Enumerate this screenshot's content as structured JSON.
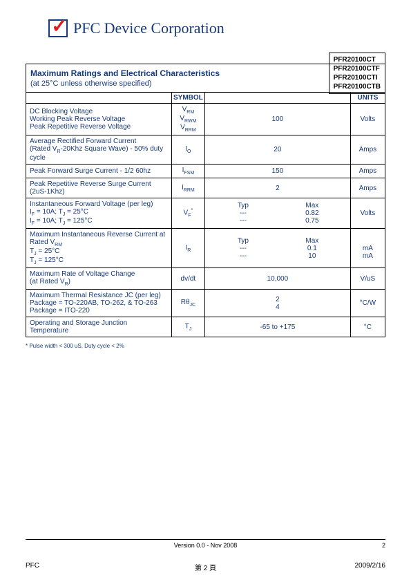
{
  "colors": {
    "brand_blue": "#173a7a",
    "check_red": "#e21b1b",
    "text": "#000000",
    "background": "#ffffff"
  },
  "header": {
    "company_name": "PFC Device Corporation"
  },
  "parts_box": {
    "lines": [
      "PFR20100CT",
      "PFR20100CTF",
      "PFR20100CTI",
      "PFR20100CTB"
    ]
  },
  "table": {
    "title": "Maximum Ratings and Electrical Characteristics",
    "condition": "(at 25°C unless otherwise specified)",
    "headers": {
      "symbol": "SYMBOL",
      "units": "UNITS"
    },
    "rows": [
      {
        "param_lines": [
          "DC Blocking Voltage",
          "Working Peak Reverse Voltage",
          "Peak Repetitive Reverse Voltage"
        ],
        "symbol_html": "V<sub class='sub'>RM</sub><br>V<sub class='sub'>RWM</sub><br>V<sub class='sub'>RRM</sub>",
        "value": "100",
        "units": "Volts"
      },
      {
        "param_lines": [
          "Average Rectified Forward Current",
          "(Rated V<sub class='sub'>R</sub>-20Khz Square Wave) - 50% duty",
          "cycle"
        ],
        "symbol_html": "I<sub class='sub'>O</sub>",
        "value": "20",
        "units": "Amps"
      },
      {
        "param_lines": [
          "Peak Forward Surge Current - 1/2 60hz"
        ],
        "symbol_html": "I<sub class='sub'>FSM</sub>",
        "value": "150",
        "units": "Amps"
      },
      {
        "param_lines": [
          "Peak Repetitive Reverse Surge Current",
          "(2uS-1Khz)"
        ],
        "symbol_html": "I<sub class='sub'>RRM</sub>",
        "value": "2",
        "units": "Amps"
      },
      {
        "param_lines": [
          "Instantaneous Forward Voltage (per leg)",
          "I<sub class='sub'>F</sub> =  10A; T<sub class='sub'>J</sub> =  25°C",
          "I<sub class='sub'>F</sub> =  10A; T<sub class='sub'>J</sub> = 125°C"
        ],
        "symbol_html": "V<sub class='sub'>F</sub><sup class='sup'>*</sup>",
        "typ_lines": [
          "Typ",
          "---",
          "---"
        ],
        "max_lines": [
          "Max",
          "0.82",
          "0.75"
        ],
        "units": "Volts"
      },
      {
        "param_lines": [
          "Maximum Instantaneous Reverse Current at",
          "Rated V<sub class='sub'>RM</sub>",
          "T<sub class='sub'>J</sub> =  25°C",
          "T<sub class='sub'>J</sub> = 125°C"
        ],
        "symbol_html": "I<sub class='sub'>R</sub>",
        "typ_lines": [
          "Typ",
          "---",
          "---"
        ],
        "max_lines": [
          "Max",
          "0.1",
          "10"
        ],
        "units_lines": [
          "",
          "mA",
          "mA"
        ]
      },
      {
        "param_lines": [
          "Maximum Rate of Voltage Change",
          "(at Rated V<sub class='sub'>R</sub>)"
        ],
        "symbol_html": "dv/dt",
        "value": "10,000",
        "units": "V/uS"
      },
      {
        "param_lines": [
          "Maximum Thermal Resistance JC (per leg)",
          "Package = TO-220AB, TO-262, & TO-263",
          "Package = ITO-220"
        ],
        "symbol_html": "Rθ<sub class='sub'>JC</sub>",
        "value_lines": [
          "2",
          "4"
        ],
        "units": "°C/W"
      },
      {
        "param_lines": [
          "Operating and Storage Junction Temperature"
        ],
        "symbol_html": "T<sub class='sub'>J</sub>",
        "value": "-65 to +175",
        "units": "°C"
      }
    ]
  },
  "footnote": "* Pulse width < 300 uS, Duty cycle < 2%",
  "footer": {
    "version": "Version 0.0 - Nov 2008",
    "page_top_right": "2",
    "org": "PFC",
    "page_label": "第 2 頁",
    "date": "2009/2/16"
  }
}
